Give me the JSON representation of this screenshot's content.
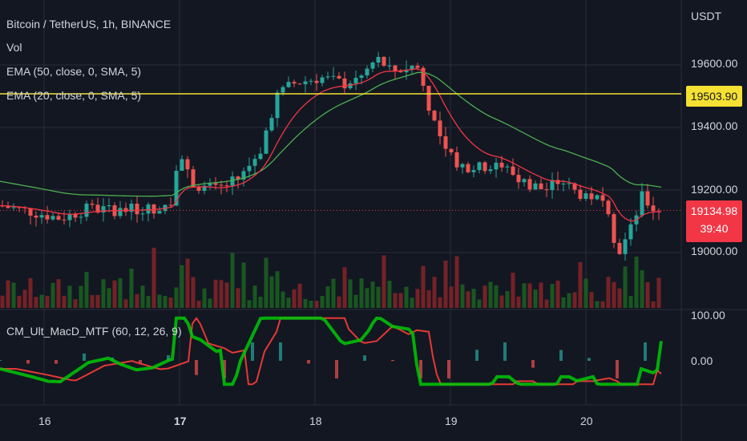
{
  "header": {
    "symbol": "Bitcoin / TetherUS, 1h, BINANCE",
    "indicators": [
      "Vol",
      "EMA (50, close, 0, SMA, 5)",
      "EMA (20, close, 0, SMA, 5)"
    ]
  },
  "price_axis": {
    "currency": "USDT",
    "ticks": [
      "19600.00",
      "19400.00",
      "19200.00",
      "19000.00"
    ],
    "horizontal_line_label": "19503.90",
    "current_price": "19134.98",
    "countdown": "39:40"
  },
  "macd_panel": {
    "title": "CM_Ult_MacD_MTF (60, 12, 26, 9)",
    "ticks": [
      "100.00",
      "0.00"
    ]
  },
  "time_axis": {
    "ticks": [
      "16",
      "17",
      "18",
      "19",
      "20"
    ]
  },
  "colors": {
    "background": "#131722",
    "up": "#26a69a",
    "down": "#ef5350",
    "ema20": "#f23645",
    "ema50": "#4caf50",
    "hline": "#f5e133",
    "macd_up": "#00c805",
    "macd_signal": "#e53935"
  }
}
